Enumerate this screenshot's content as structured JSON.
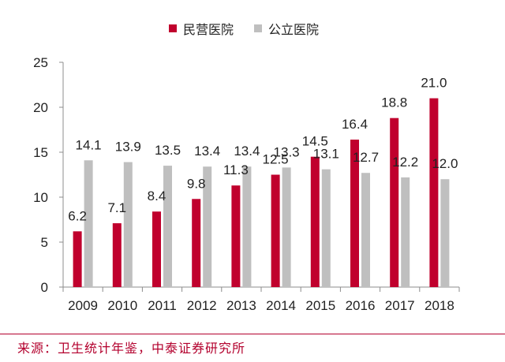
{
  "legend": {
    "series1": "民营医院",
    "series2": "公立医院"
  },
  "source_note": "来源：卫生统计年鉴，中泰证券研究所",
  "colors": {
    "series1": "#c0002d",
    "series2": "#bfbfbf",
    "axis": "#8c8c8c",
    "source": "#b3002d"
  },
  "chart_data": {
    "type": "bar",
    "categories": [
      "2009",
      "2010",
      "2011",
      "2012",
      "2013",
      "2014",
      "2015",
      "2016",
      "2017",
      "2018"
    ],
    "series": [
      {
        "name": "民营医院",
        "values": [
          6.2,
          7.1,
          8.4,
          9.8,
          11.3,
          12.5,
          14.5,
          16.4,
          18.8,
          21.0
        ]
      },
      {
        "name": "公立医院",
        "values": [
          14.1,
          13.9,
          13.5,
          13.4,
          13.4,
          13.3,
          13.1,
          12.7,
          12.2,
          12.0
        ]
      }
    ],
    "ylim": [
      0,
      25
    ],
    "yticks": [
      0,
      5,
      10,
      15,
      20,
      25
    ],
    "grid": false,
    "legend_position": "top-center",
    "title": "",
    "xlabel": "",
    "ylabel": ""
  }
}
